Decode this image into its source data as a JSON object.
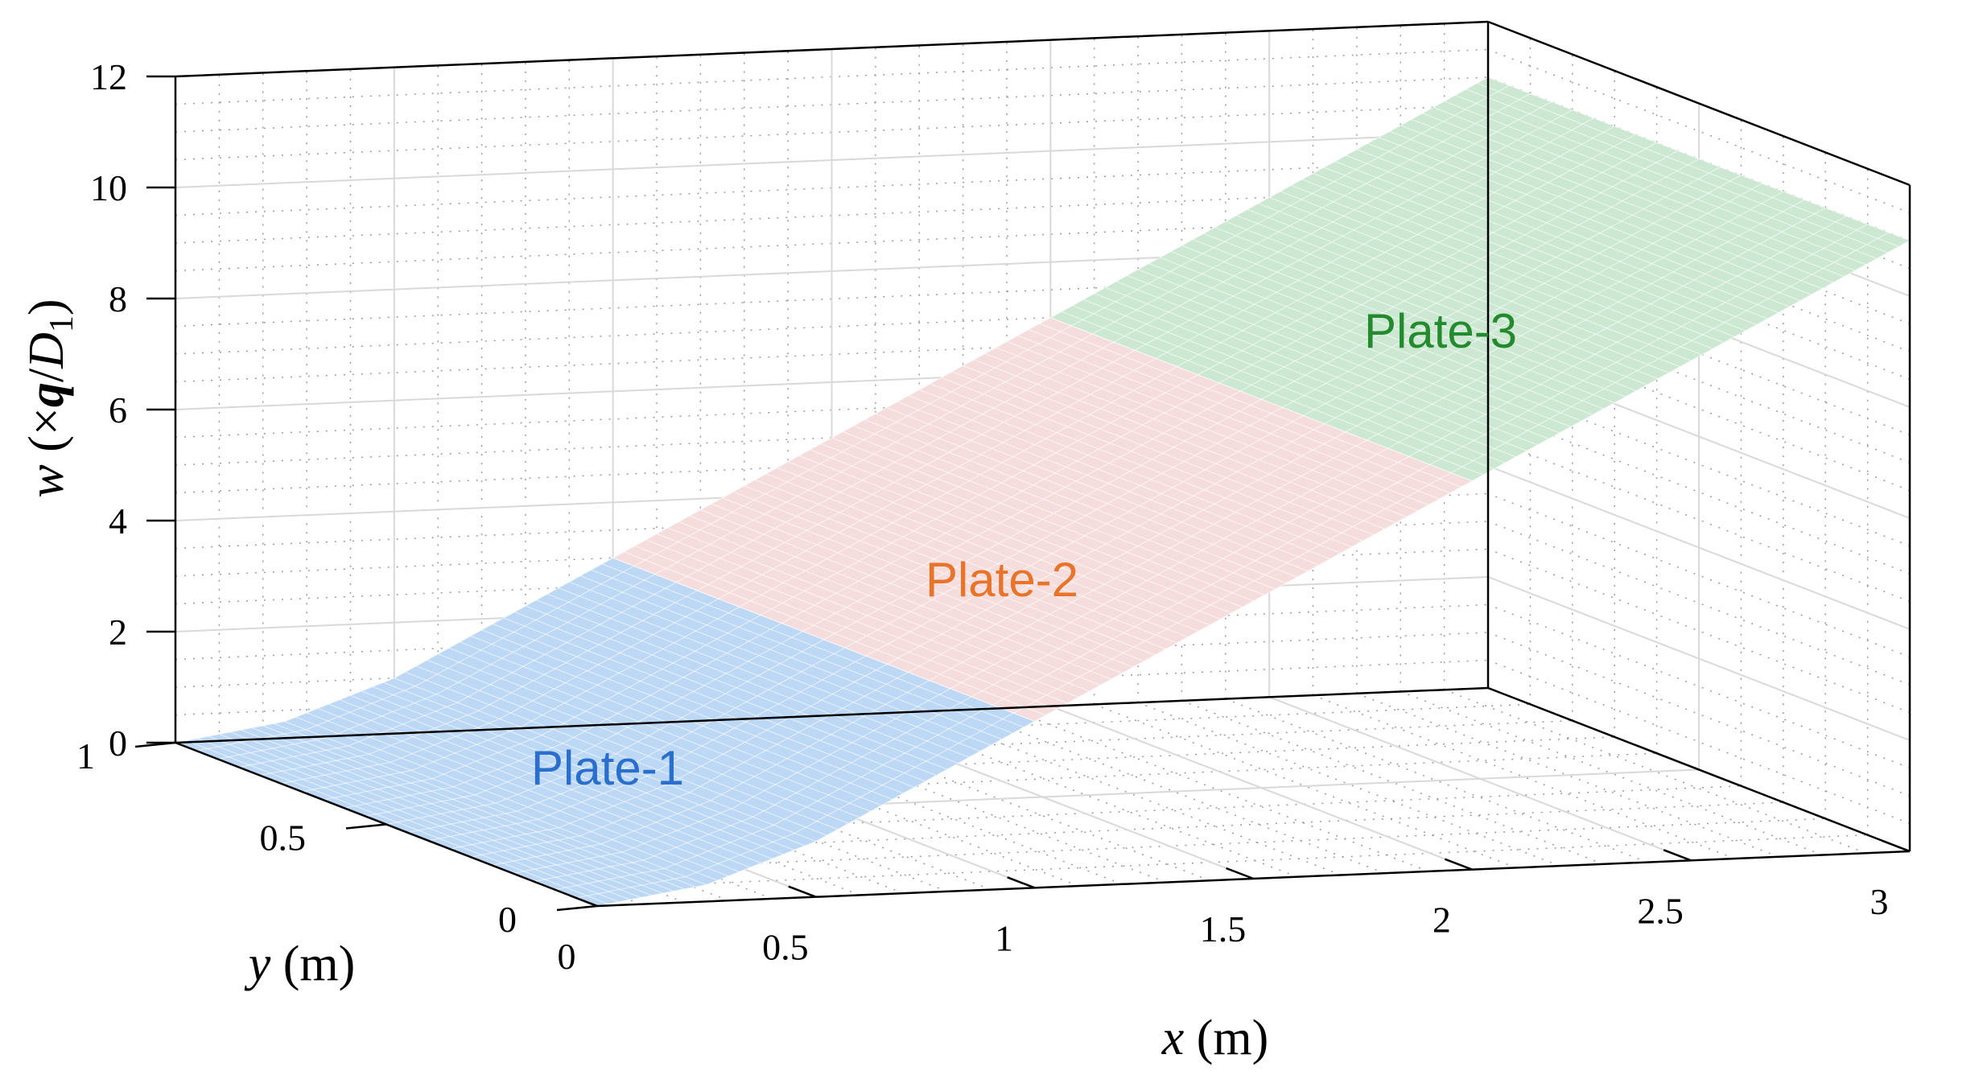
{
  "chart_data": {
    "type": "surface3d",
    "title": "",
    "xlabel": {
      "var": "x",
      "unit": " (m)"
    },
    "ylabel": {
      "var": "y",
      "unit": " (m)"
    },
    "zlabel": {
      "var": "w",
      "pre": " (×",
      "q": "q",
      "slash": "/",
      "D": "D",
      "sub": "1",
      "post": ")"
    },
    "xlim": [
      0,
      3
    ],
    "ylim": [
      0,
      1
    ],
    "zlim": [
      0,
      12
    ],
    "xticks": [
      "0",
      "0.5",
      "1",
      "1.5",
      "2",
      "2.5",
      "3"
    ],
    "yticks": [
      "0",
      "0.5",
      "1"
    ],
    "zticks": [
      "0",
      "2",
      "4",
      "6",
      "8",
      "10",
      "12"
    ],
    "grid": true,
    "plates": [
      {
        "name": "Plate-1",
        "x_range": [
          0,
          1
        ],
        "color": "#bcd8f5",
        "label_color": "#2a6fcc"
      },
      {
        "name": "Plate-2",
        "x_range": [
          1,
          2
        ],
        "color": "#f6dddd",
        "label_color": "#e8742a"
      },
      {
        "name": "Plate-3",
        "x_range": [
          2,
          3
        ],
        "color": "#cce8d2",
        "label_color": "#238a2e"
      }
    ],
    "deflection_w": {
      "x": [
        0,
        0.25,
        0.5,
        0.75,
        1,
        1.25,
        1.5,
        1.75,
        2,
        2.25,
        2.5,
        2.75,
        3
      ],
      "w": [
        0,
        0.3,
        1.0,
        2.0,
        3.0,
        4.0,
        5.0,
        6.0,
        7.0,
        8.0,
        9.0,
        10.0,
        11.0
      ]
    }
  }
}
